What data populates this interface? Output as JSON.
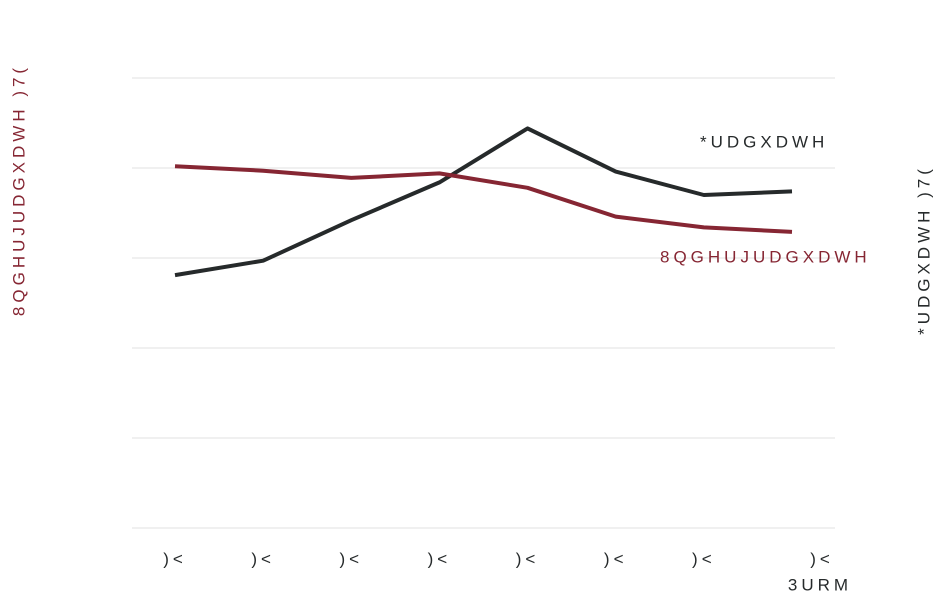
{
  "chart_data": {
    "type": "line",
    "y_label": "8QGHUJUDGXDWH )7(",
    "y2_label": "*UDGXDWH )7(",
    "annotation": "3URM",
    "categories": [
      ")<",
      ")<",
      ")<",
      ")<",
      ")<",
      ")<",
      ")<",
      ")<"
    ],
    "series": [
      {
        "name": "*UDGXDWH",
        "color": "#262a2b",
        "values": [
          2.81,
          2.97,
          3.42,
          3.84,
          4.44,
          3.96,
          3.7,
          3.74
        ]
      },
      {
        "name": "8QGHUJUDGXDWH",
        "color": "#862633",
        "values": [
          4.02,
          3.97,
          3.89,
          3.94,
          3.78,
          3.46,
          3.34,
          3.29
        ]
      }
    ],
    "ylim": [
      0,
      5
    ],
    "yticks": [
      0,
      1,
      2,
      3,
      4,
      5
    ],
    "grid": true
  }
}
